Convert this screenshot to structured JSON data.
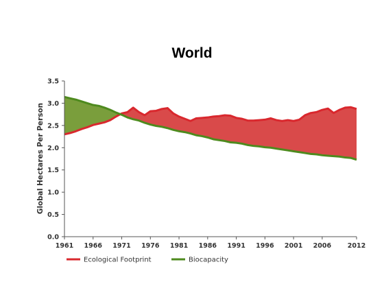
{
  "chart_data": {
    "type": "area",
    "title": "World",
    "xlabel": "",
    "ylabel": "Global Hectares Per Person",
    "xlim": [
      1961,
      2012
    ],
    "ylim": [
      0.0,
      3.5
    ],
    "x_ticks": [
      "1961",
      "1966",
      "1971",
      "1976",
      "1981",
      "1986",
      "1991",
      "1996",
      "2001",
      "2006",
      "2012"
    ],
    "y_ticks": [
      "0.0",
      "0.5",
      "1.0",
      "1.5",
      "2.0",
      "2.5",
      "3.0",
      "3.5"
    ],
    "x": [
      1961,
      1962,
      1963,
      1964,
      1965,
      1966,
      1967,
      1968,
      1969,
      1970,
      1971,
      1972,
      1973,
      1974,
      1975,
      1976,
      1977,
      1978,
      1979,
      1980,
      1981,
      1982,
      1983,
      1984,
      1985,
      1986,
      1987,
      1988,
      1989,
      1990,
      1991,
      1992,
      1993,
      1994,
      1995,
      1996,
      1997,
      1998,
      1999,
      2000,
      2001,
      2002,
      2003,
      2004,
      2005,
      2006,
      2007,
      2008,
      2009,
      2010,
      2011,
      2012
    ],
    "series": [
      {
        "name": "Ecological Footprint",
        "color": "#d9282e",
        "values": [
          2.3,
          2.33,
          2.37,
          2.42,
          2.46,
          2.51,
          2.54,
          2.57,
          2.62,
          2.7,
          2.77,
          2.8,
          2.9,
          2.8,
          2.73,
          2.82,
          2.83,
          2.87,
          2.89,
          2.77,
          2.7,
          2.65,
          2.6,
          2.66,
          2.67,
          2.68,
          2.7,
          2.71,
          2.73,
          2.72,
          2.67,
          2.65,
          2.61,
          2.61,
          2.62,
          2.63,
          2.66,
          2.62,
          2.6,
          2.62,
          2.6,
          2.63,
          2.73,
          2.78,
          2.8,
          2.85,
          2.88,
          2.78,
          2.85,
          2.9,
          2.91,
          2.87
        ]
      },
      {
        "name": "Biocapacity",
        "color": "#4e8a1e",
        "values": [
          3.14,
          3.11,
          3.08,
          3.04,
          3.0,
          2.96,
          2.94,
          2.9,
          2.85,
          2.79,
          2.74,
          2.68,
          2.64,
          2.61,
          2.56,
          2.52,
          2.49,
          2.47,
          2.44,
          2.4,
          2.37,
          2.35,
          2.32,
          2.28,
          2.26,
          2.23,
          2.19,
          2.17,
          2.15,
          2.12,
          2.11,
          2.09,
          2.06,
          2.04,
          2.03,
          2.01,
          2.0,
          1.98,
          1.96,
          1.94,
          1.92,
          1.9,
          1.88,
          1.86,
          1.85,
          1.83,
          1.82,
          1.81,
          1.8,
          1.78,
          1.77,
          1.73
        ]
      }
    ],
    "fill_colors": {
      "overshoot": "#d94a4a",
      "reserve": "#7a9e3c"
    },
    "grid": false,
    "legend": "bottom-left"
  }
}
